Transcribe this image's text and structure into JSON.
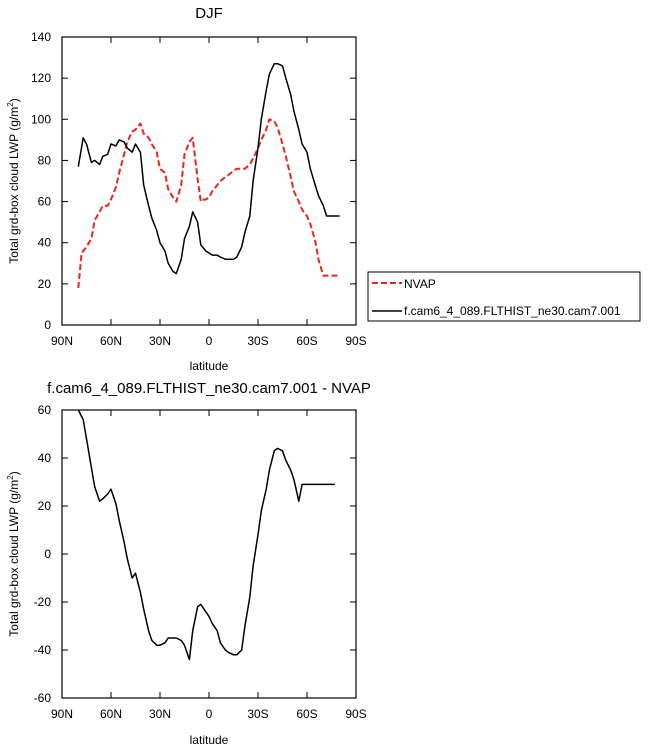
{
  "chart_data": [
    {
      "type": "line",
      "title": "DJF",
      "xlabel": "latitude",
      "ylabel": "Total grd-box cloud LWP (g/m",
      "ylabel_sup": "2",
      "ylabel_end": ")",
      "xlim": [
        90,
        -90
      ],
      "ylim": [
        0,
        140
      ],
      "xticks": [
        90,
        60,
        30,
        0,
        -30,
        -60,
        -90
      ],
      "xtick_labels": [
        "90N",
        "60N",
        "30N",
        "0",
        "30S",
        "60S",
        "90S"
      ],
      "yticks": [
        0,
        20,
        40,
        60,
        80,
        100,
        120,
        140
      ],
      "ytick_labels": [
        "0",
        "20",
        "40",
        "60",
        "80",
        "100",
        "120",
        "140"
      ],
      "grid": false,
      "legend_position": "right, outside the plot",
      "series": [
        {
          "name": "NVAP",
          "color": "#e8251e",
          "dash": "dashed",
          "x": [
            80,
            78,
            75,
            72,
            70,
            67,
            65,
            62,
            60,
            57,
            55,
            52,
            50,
            47,
            45,
            42,
            40,
            37,
            35,
            32,
            30,
            27,
            25,
            22,
            20,
            17,
            15,
            12,
            10,
            7,
            5,
            3,
            2,
            0,
            -2,
            -5,
            -7,
            -10,
            -12,
            -15,
            -17,
            -20,
            -22,
            -25,
            -27,
            -30,
            -32,
            -35,
            -37,
            -40,
            -42,
            -45,
            -47,
            -50,
            -52,
            -55,
            -57,
            -60,
            -62,
            -65,
            -67,
            -70,
            -72,
            -75,
            -77,
            -80
          ],
          "values": [
            18,
            35,
            38,
            42,
            51,
            55,
            58,
            58,
            61,
            67,
            74,
            83,
            89,
            94,
            95,
            98,
            93,
            91,
            88,
            84,
            76,
            74,
            66,
            62,
            60,
            68,
            83,
            89,
            91,
            71,
            60,
            61,
            61,
            62,
            65,
            68,
            70,
            72,
            73,
            75,
            76,
            76,
            76,
            78,
            81,
            86,
            90,
            95,
            100,
            99,
            96,
            88,
            82,
            72,
            65,
            60,
            56,
            53,
            49,
            41,
            32,
            24,
            24,
            24,
            24,
            24
          ]
        },
        {
          "name": "f.cam6_4_089.FLTHIST_ne30.cam7.001",
          "color": "#000000",
          "dash": "solid",
          "x": [
            80,
            77,
            75,
            72,
            70,
            67,
            65,
            62,
            60,
            57,
            55,
            52,
            50,
            47,
            45,
            42,
            40,
            37,
            35,
            32,
            30,
            27,
            25,
            22,
            20,
            17,
            15,
            12,
            10,
            7,
            5,
            2,
            0,
            -2,
            -5,
            -7,
            -10,
            -12,
            -15,
            -17,
            -20,
            -22,
            -25,
            -27,
            -30,
            -32,
            -35,
            -37,
            -40,
            -42,
            -45,
            -47,
            -50,
            -52,
            -55,
            -57,
            -60,
            -62,
            -65,
            -67,
            -70,
            -72,
            -75,
            -77,
            -80
          ],
          "values": [
            77,
            91,
            88,
            79,
            80,
            78,
            82,
            83,
            88,
            87,
            90,
            89,
            86,
            84,
            88,
            84,
            68,
            58,
            52,
            46,
            40,
            36,
            30,
            26,
            25,
            32,
            42,
            48,
            55,
            50,
            39,
            36,
            35,
            34,
            34,
            33,
            32,
            32,
            32,
            33,
            38,
            45,
            53,
            70,
            86,
            100,
            114,
            122,
            127,
            127,
            126,
            120,
            112,
            104,
            95,
            88,
            84,
            76,
            68,
            63,
            58,
            53,
            53,
            53,
            53
          ]
        }
      ]
    },
    {
      "type": "line",
      "title": "f.cam6_4_089.FLTHIST_ne30.cam7.001 - NVAP",
      "xlabel": "latitude",
      "ylabel": "Total grd-box cloud LWP (g/m",
      "ylabel_sup": "2",
      "ylabel_end": ")",
      "xlim": [
        90,
        -90
      ],
      "ylim": [
        -60,
        60
      ],
      "xticks": [
        90,
        60,
        30,
        0,
        -30,
        -60,
        -90
      ],
      "xtick_labels": [
        "90N",
        "60N",
        "30N",
        "0",
        "30S",
        "60S",
        "90S"
      ],
      "yticks": [
        -60,
        -40,
        -20,
        0,
        20,
        40,
        60
      ],
      "ytick_labels": [
        "-60",
        "-40",
        "-20",
        "0",
        "20",
        "40",
        "60"
      ],
      "grid": false,
      "series": [
        {
          "color": "#000000",
          "dash": "solid",
          "x": [
            80,
            77,
            75,
            72,
            70,
            67,
            65,
            62,
            60,
            57,
            55,
            52,
            50,
            47,
            45,
            42,
            40,
            37,
            35,
            32,
            30,
            27,
            25,
            22,
            20,
            17,
            15,
            12,
            10,
            7,
            5,
            2,
            0,
            -2,
            -5,
            -7,
            -10,
            -12,
            -15,
            -17,
            -20,
            -22,
            -25,
            -27,
            -30,
            -32,
            -35,
            -37,
            -40,
            -42,
            -45,
            -47,
            -50,
            -52,
            -55,
            -57,
            -60,
            -62,
            -65,
            -67,
            -70,
            -72,
            -75,
            -77
          ],
          "values": [
            60,
            56,
            48,
            36,
            28,
            22,
            23,
            25,
            27,
            21,
            14,
            5,
            -2,
            -10,
            -8,
            -16,
            -23,
            -32,
            -36,
            -38,
            -38,
            -37,
            -35,
            -35,
            -35,
            -36,
            -38,
            -44,
            -32,
            -22,
            -21,
            -24,
            -26,
            -29,
            -32,
            -37,
            -40,
            -41,
            -42,
            -42,
            -40,
            -30,
            -18,
            -5,
            8,
            18,
            27,
            35,
            43,
            44,
            43,
            39,
            35,
            31,
            22,
            29,
            29,
            29,
            29,
            29,
            29,
            29,
            29,
            29
          ]
        }
      ]
    }
  ]
}
